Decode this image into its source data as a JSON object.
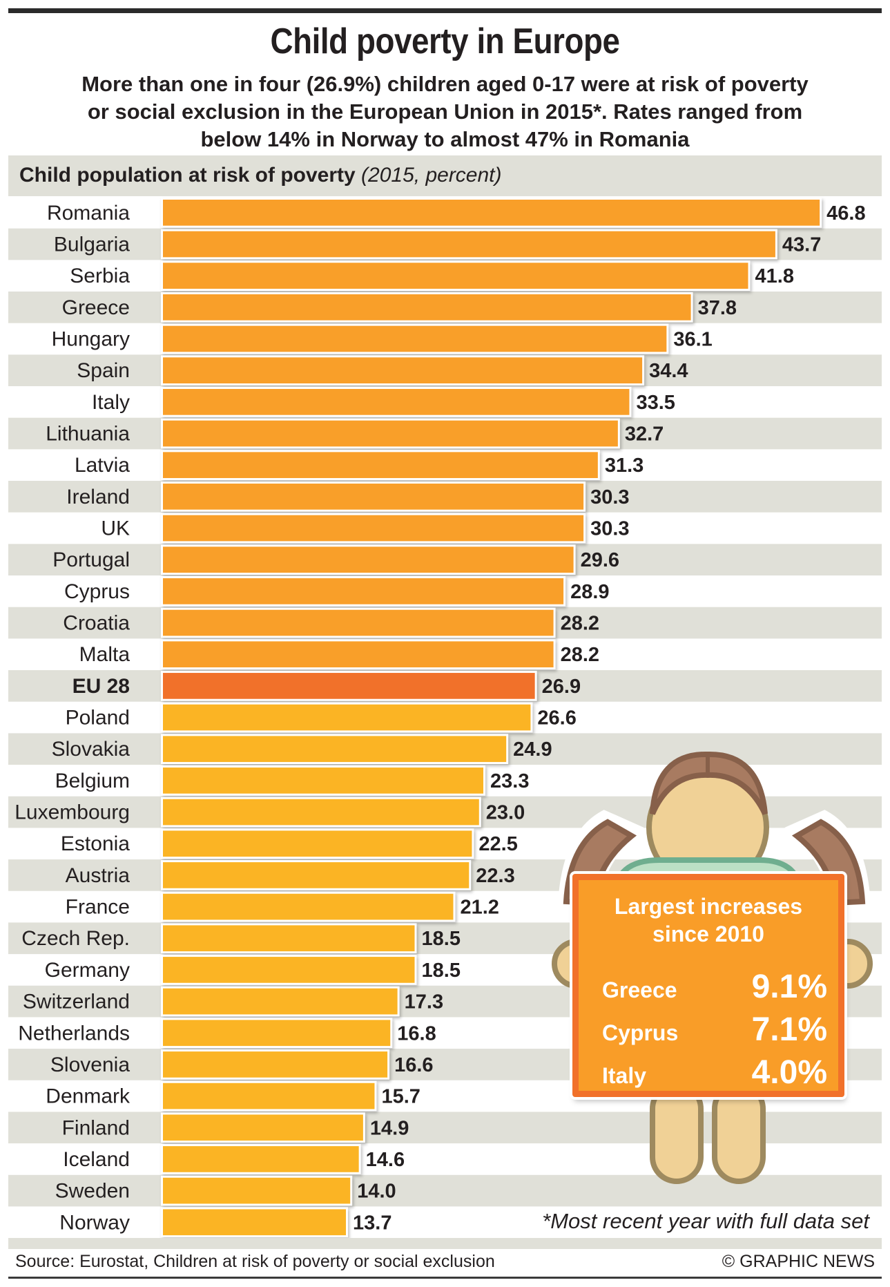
{
  "header": {
    "title": "Child poverty in Europe",
    "subtitle_lines": [
      "More than one in four (26.9%) children aged 0-17 were at risk of poverty",
      "or social exclusion in the European Union in 2015*. Rates ranged from",
      "below 14% in Norway to almost 47% in Romania"
    ]
  },
  "colors": {
    "bar_above_eu": "#f99f29",
    "bar_eu": "#f1712a",
    "bar_below_eu": "#fbb424",
    "stripe": "#e0e0d8",
    "text": "#231f20"
  },
  "chart_data": {
    "type": "bar",
    "orientation": "horizontal",
    "title": "Child population at risk of poverty",
    "title_qualifier": "(2015, percent)",
    "xlabel": "",
    "ylabel": "",
    "unit": "percent",
    "grid": false,
    "highlight": "EU 28",
    "categories": [
      "Romania",
      "Bulgaria",
      "Serbia",
      "Greece",
      "Hungary",
      "Spain",
      "Italy",
      "Lithuania",
      "Latvia",
      "Ireland",
      "UK",
      "Portugal",
      "Cyprus",
      "Croatia",
      "Malta",
      "EU 28",
      "Poland",
      "Slovakia",
      "Belgium",
      "Luxembourg",
      "Estonia",
      "Austria",
      "France",
      "Czech Rep.",
      "Germany",
      "Switzerland",
      "Netherlands",
      "Slovenia",
      "Denmark",
      "Finland",
      "Iceland",
      "Sweden",
      "Norway"
    ],
    "values": [
      46.8,
      43.7,
      41.8,
      37.8,
      36.1,
      34.4,
      33.5,
      32.7,
      31.3,
      30.3,
      30.3,
      29.6,
      28.9,
      28.2,
      28.2,
      26.9,
      26.6,
      24.9,
      23.3,
      23.0,
      22.5,
      22.3,
      21.2,
      18.5,
      18.5,
      17.3,
      16.8,
      16.6,
      15.7,
      14.9,
      14.6,
      14.0,
      13.7
    ],
    "value_labels": [
      "46.8",
      "43.7",
      "41.8",
      "37.8",
      "36.1",
      "34.4",
      "33.5",
      "32.7",
      "31.3",
      "30.3",
      "30.3",
      "29.6",
      "28.9",
      "28.2",
      "28.2",
      "26.9",
      "26.6",
      "24.9",
      "23.3",
      "23.0",
      "22.5",
      "22.3",
      "21.2",
      "18.5",
      "18.5",
      "17.3",
      "16.8",
      "16.6",
      "15.7",
      "14.9",
      "14.6",
      "14.0",
      "13.7"
    ],
    "xlim": [
      0,
      47
    ]
  },
  "callout": {
    "title_lines": [
      "Largest increases",
      "since 2010"
    ],
    "rows": [
      {
        "country": "Greece",
        "value": "9.1%"
      },
      {
        "country": "Cyprus",
        "value": "7.1%"
      },
      {
        "country": "Italy",
        "value": "4.0%"
      }
    ]
  },
  "footer": {
    "note": "*Most recent year with full data set",
    "source": "Source: Eurostat, Children at risk of poverty or social exclusion",
    "credit": "© GRAPHIC NEWS"
  }
}
